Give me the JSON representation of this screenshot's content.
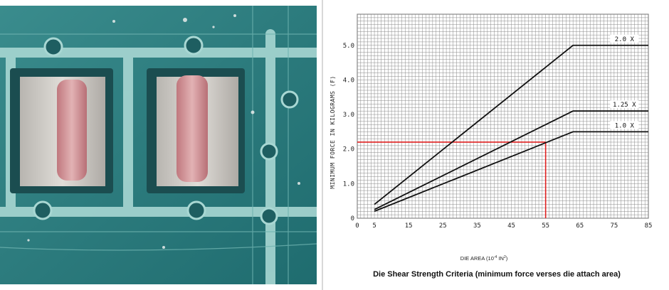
{
  "photo": {
    "colors": {
      "board": "#2f7f80",
      "trace": "#a9d6d2",
      "pad_dark": "#1b4d50",
      "die": "#c7c4c1",
      "die_core": "#c58a8c"
    }
  },
  "chart_data": {
    "type": "line",
    "title": "Die Shear Strength Criteria (minimum force verses die attach area)",
    "xlabel_main": "DIE AREA (10",
    "xlabel_sup1": "-4",
    "xlabel_mid": " IN",
    "xlabel_sup2": "2",
    "xlabel_end": ")",
    "ylabel": "MINIMUM FORCE IN KILOGRAMS (F)",
    "xlim": [
      0,
      85
    ],
    "ylim": [
      0,
      5.9
    ],
    "x_ticks": [
      "0",
      "5",
      "15",
      "25",
      "35",
      "45",
      "55",
      "65",
      "75",
      "85"
    ],
    "x_tick_values": [
      0,
      5,
      15,
      25,
      35,
      45,
      55,
      65,
      75,
      85
    ],
    "y_ticks": [
      "0",
      "1.0",
      "2.0",
      "3.0",
      "4.0",
      "5.0"
    ],
    "y_tick_values": [
      0,
      1,
      2,
      3,
      4,
      5
    ],
    "grid": true,
    "series": [
      {
        "name": "2.0 X",
        "points": [
          [
            5,
            0.4
          ],
          [
            63,
            5.0
          ],
          [
            85,
            5.0
          ]
        ]
      },
      {
        "name": "1.25 X",
        "points": [
          [
            5,
            0.25
          ],
          [
            63,
            3.1
          ],
          [
            85,
            3.1
          ]
        ]
      },
      {
        "name": "1.0 X",
        "points": [
          [
            5,
            0.2
          ],
          [
            63,
            2.5
          ],
          [
            85,
            2.5
          ]
        ]
      }
    ],
    "reference": {
      "x": 55,
      "y": 2.2,
      "color": "#e02020"
    },
    "line_color": "#111111",
    "grid_color": "#8a8a8a"
  }
}
